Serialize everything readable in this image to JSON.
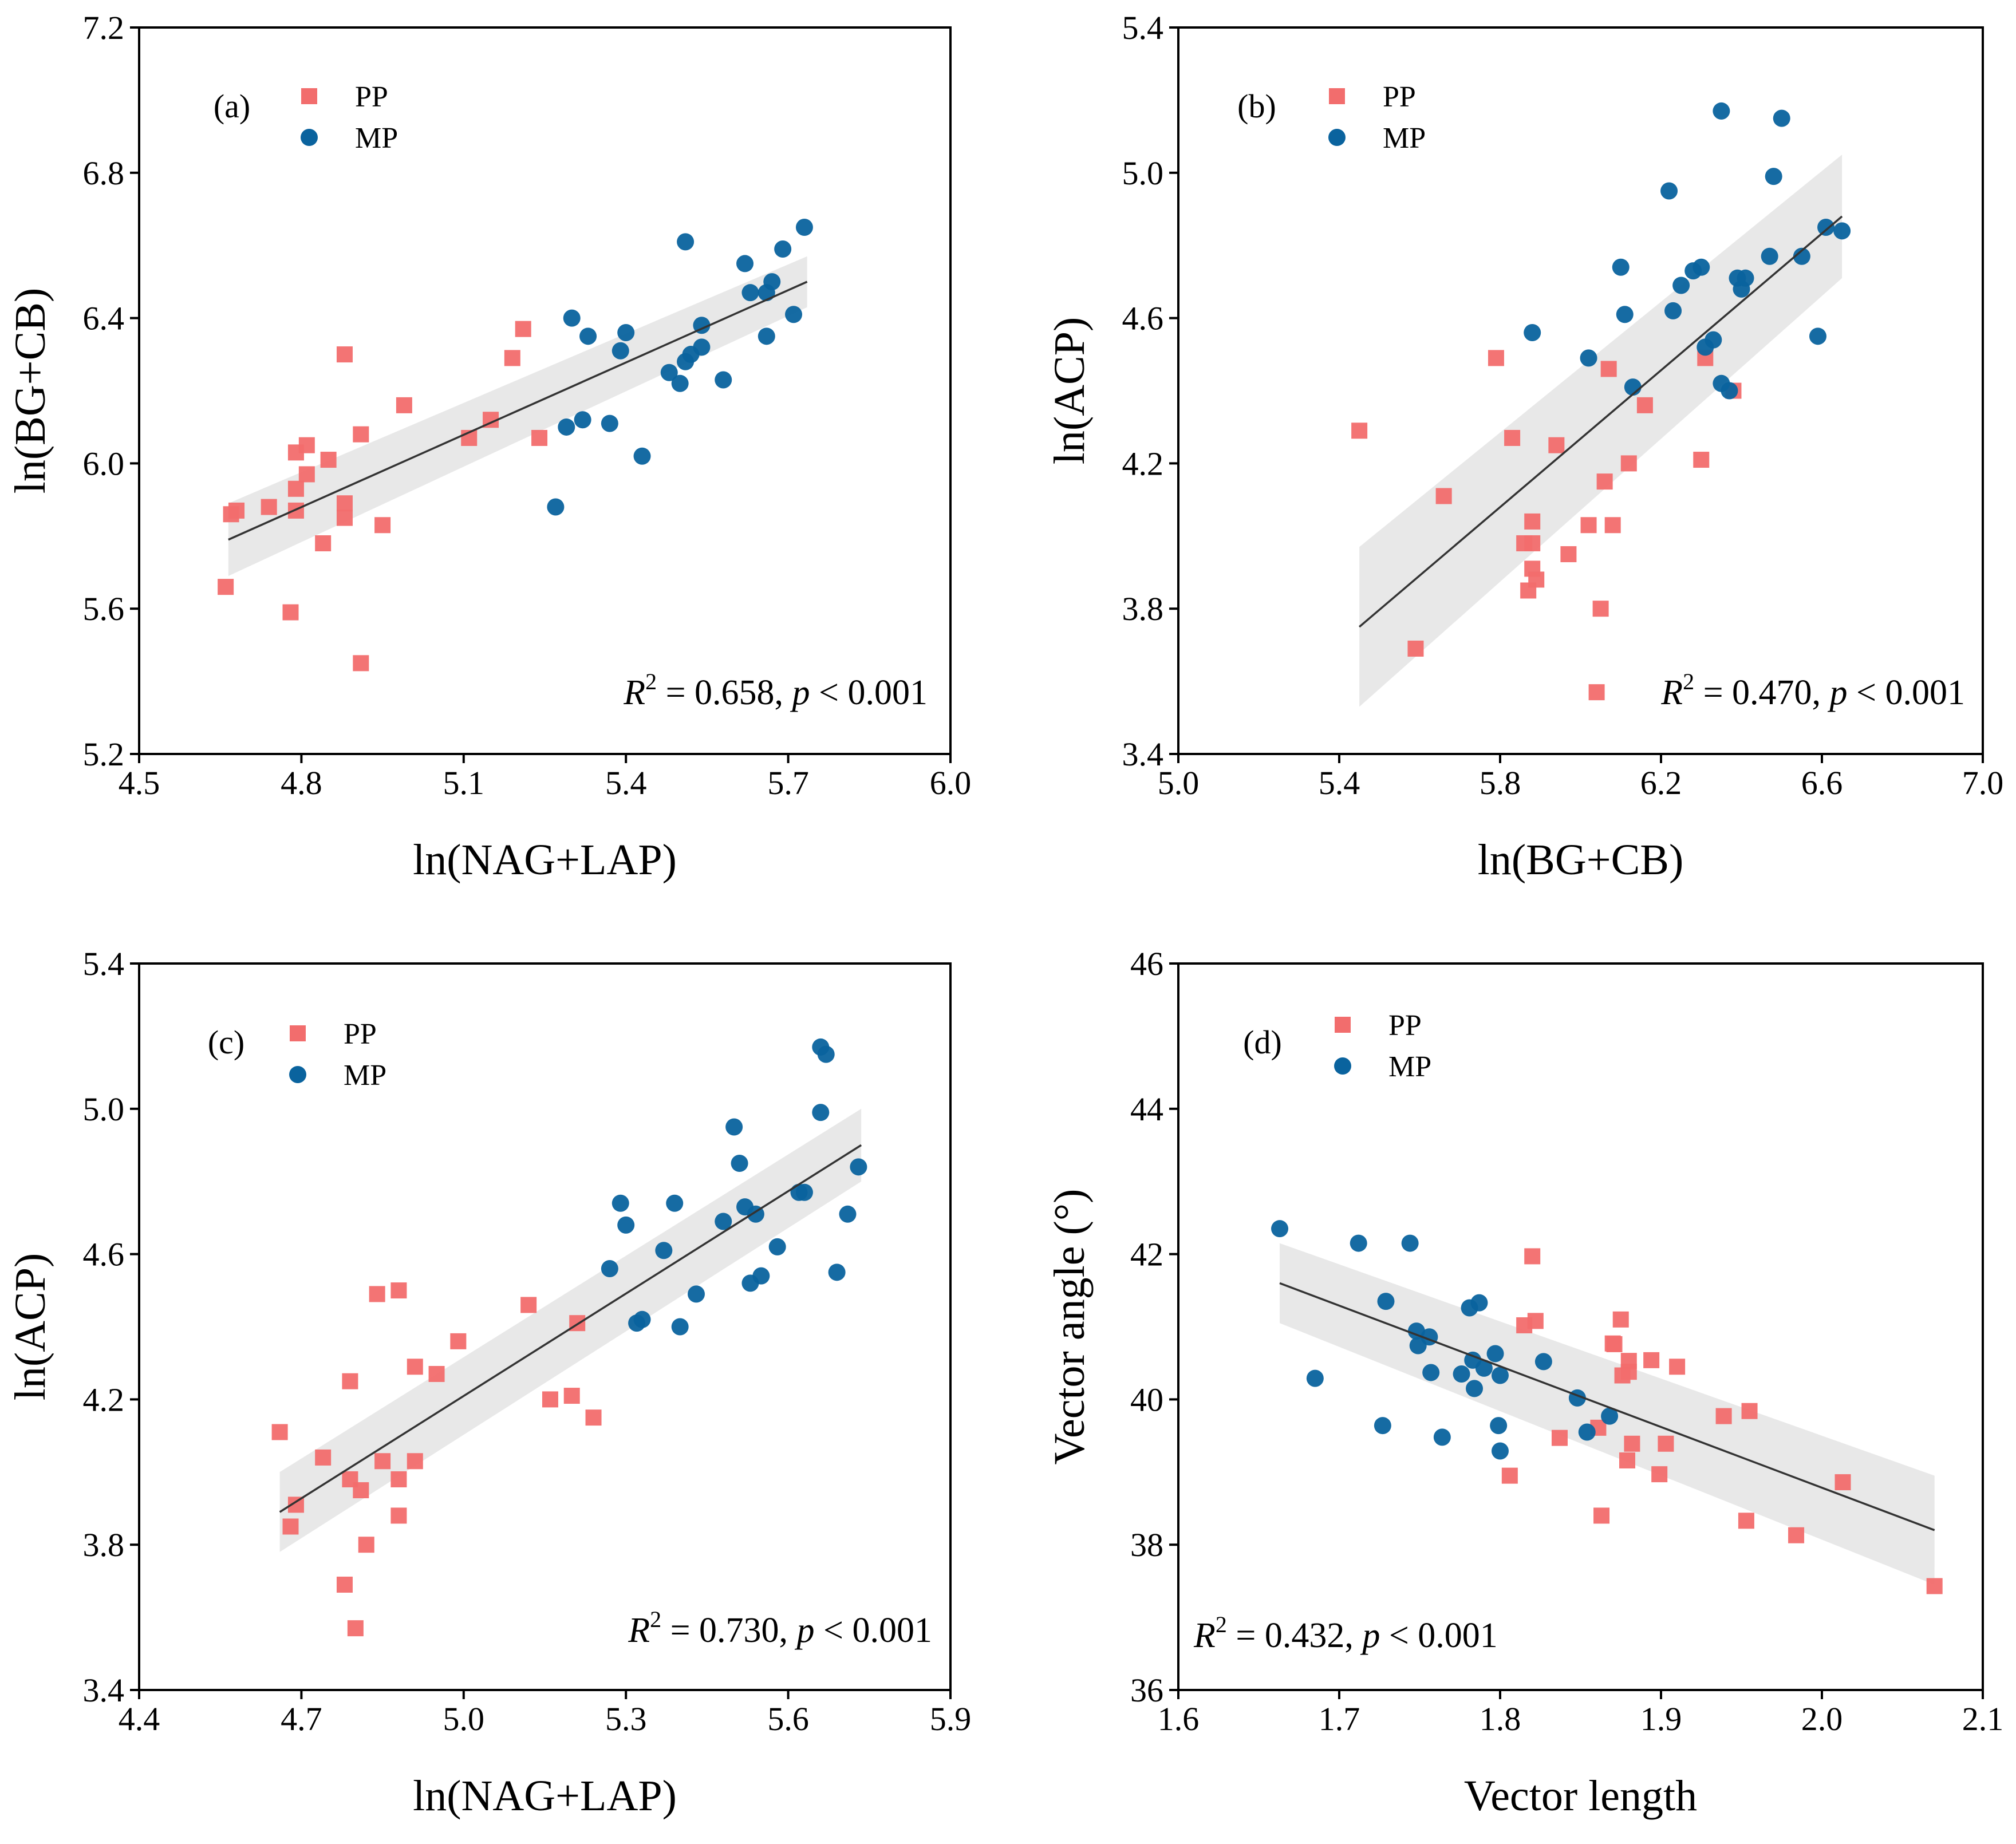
{
  "chart_data": [
    {
      "type": "scatter",
      "panel_label": "(a)",
      "xlabel": "ln(NAG+LAP)",
      "ylabel": "ln(BG+CB)",
      "xlim": [
        4.5,
        6.0
      ],
      "ylim": [
        5.2,
        7.2
      ],
      "xticks": [
        "4.5",
        "4.8",
        "5.1",
        "5.4",
        "5.7",
        "6.0"
      ],
      "yticks": [
        "5.2",
        "5.6",
        "6.0",
        "6.4",
        "6.8",
        "7.2"
      ],
      "legend": [
        {
          "name": "PP",
          "marker": "square",
          "color": "#f26d6d"
        },
        {
          "name": "MP",
          "marker": "circle",
          "color": "#0a639e"
        }
      ],
      "stats": {
        "r2_prefix": "R",
        "r2_sup": "2",
        "r2_value": " = 0.658, ",
        "p_letter": "p",
        "p_value": " < 0.001"
      },
      "fit": {
        "x": [
          4.665,
          5.735
        ],
        "y": [
          5.79,
          6.5
        ]
      },
      "ci": {
        "upper": [
          5.89,
          6.57
        ],
        "lower": [
          5.69,
          6.43
        ],
        "x_end": 5.735
      },
      "series": [
        {
          "name": "PP",
          "points": [
            [
              4.66,
              5.66
            ],
            [
              4.67,
              5.86
            ],
            [
              4.68,
              5.87
            ],
            [
              4.74,
              5.88
            ],
            [
              4.78,
              5.59
            ],
            [
              4.79,
              5.87
            ],
            [
              4.79,
              5.93
            ],
            [
              4.79,
              6.03
            ],
            [
              4.81,
              5.97
            ],
            [
              4.81,
              6.05
            ],
            [
              4.84,
              5.78
            ],
            [
              4.85,
              6.01
            ],
            [
              4.88,
              5.89
            ],
            [
              4.88,
              5.85
            ],
            [
              4.88,
              6.3
            ],
            [
              4.91,
              6.08
            ],
            [
              4.91,
              5.45
            ],
            [
              4.95,
              5.83
            ],
            [
              4.99,
              6.16
            ],
            [
              5.11,
              6.07
            ],
            [
              5.15,
              6.12
            ],
            [
              5.19,
              6.29
            ],
            [
              5.21,
              6.37
            ],
            [
              5.24,
              6.07
            ]
          ]
        },
        {
          "name": "MP",
          "points": [
            [
              5.27,
              5.88
            ],
            [
              5.29,
              6.1
            ],
            [
              5.3,
              6.4
            ],
            [
              5.32,
              6.12
            ],
            [
              5.33,
              6.35
            ],
            [
              5.37,
              6.11
            ],
            [
              5.39,
              6.31
            ],
            [
              5.4,
              6.36
            ],
            [
              5.43,
              6.02
            ],
            [
              5.48,
              6.25
            ],
            [
              5.5,
              6.22
            ],
            [
              5.51,
              6.28
            ],
            [
              5.51,
              6.61
            ],
            [
              5.52,
              6.3
            ],
            [
              5.54,
              6.32
            ],
            [
              5.54,
              6.38
            ],
            [
              5.58,
              6.23
            ],
            [
              5.62,
              6.55
            ],
            [
              5.63,
              6.47
            ],
            [
              5.66,
              6.47
            ],
            [
              5.66,
              6.35
            ],
            [
              5.67,
              6.5
            ],
            [
              5.69,
              6.59
            ],
            [
              5.71,
              6.41
            ],
            [
              5.73,
              6.65
            ]
          ]
        }
      ]
    },
    {
      "type": "scatter",
      "panel_label": "(b)",
      "xlabel": "ln(BG+CB)",
      "ylabel": "ln(ACP)",
      "xlim": [
        5.0,
        7.0
      ],
      "ylim": [
        3.4,
        5.4
      ],
      "xticks": [
        "5.0",
        "5.4",
        "5.8",
        "6.2",
        "6.6",
        "7.0"
      ],
      "yticks": [
        "3.4",
        "3.8",
        "4.2",
        "4.6",
        "5.0",
        "5.4"
      ],
      "legend": [
        {
          "name": "PP",
          "marker": "square",
          "color": "#f26d6d"
        },
        {
          "name": "MP",
          "marker": "circle",
          "color": "#0a639e"
        }
      ],
      "stats": {
        "r2_prefix": "R",
        "r2_sup": "2",
        "r2_value": " = 0.470, ",
        "p_letter": "p",
        "p_value": " < 0.001"
      },
      "fit": {
        "x": [
          5.45,
          6.65
        ],
        "y": [
          3.75,
          4.88
        ]
      },
      "ci": {
        "upper": [
          3.97,
          5.05
        ],
        "lower": [
          3.53,
          4.71
        ],
        "x_end": 6.65
      },
      "series": [
        {
          "name": "PP",
          "points": [
            [
              5.45,
              4.29
            ],
            [
              5.59,
              3.69
            ],
            [
              5.66,
              4.11
            ],
            [
              5.79,
              4.49
            ],
            [
              5.83,
              4.27
            ],
            [
              5.86,
              3.98
            ],
            [
              5.87,
              3.85
            ],
            [
              5.88,
              3.98
            ],
            [
              5.88,
              3.91
            ],
            [
              5.88,
              4.04
            ],
            [
              5.89,
              3.88
            ],
            [
              5.94,
              4.25
            ],
            [
              5.97,
              3.95
            ],
            [
              6.02,
              4.03
            ],
            [
              6.04,
              3.57
            ],
            [
              6.05,
              3.8
            ],
            [
              6.06,
              4.15
            ],
            [
              6.07,
              4.46
            ],
            [
              6.08,
              4.03
            ],
            [
              6.12,
              4.2
            ],
            [
              6.16,
              4.36
            ],
            [
              6.3,
              4.21
            ],
            [
              6.31,
              4.49
            ],
            [
              6.38,
              4.4
            ]
          ]
        },
        {
          "name": "MP",
          "points": [
            [
              5.88,
              4.56
            ],
            [
              6.02,
              4.49
            ],
            [
              6.1,
              4.74
            ],
            [
              6.11,
              4.61
            ],
            [
              6.13,
              4.41
            ],
            [
              6.22,
              4.95
            ],
            [
              6.23,
              4.62
            ],
            [
              6.25,
              4.69
            ],
            [
              6.28,
              4.73
            ],
            [
              6.3,
              4.74
            ],
            [
              6.31,
              4.52
            ],
            [
              6.33,
              4.54
            ],
            [
              6.35,
              5.17
            ],
            [
              6.35,
              4.42
            ],
            [
              6.37,
              4.4
            ],
            [
              6.39,
              4.71
            ],
            [
              6.4,
              4.68
            ],
            [
              6.41,
              4.71
            ],
            [
              6.47,
              4.77
            ],
            [
              6.48,
              4.99
            ],
            [
              6.5,
              5.15
            ],
            [
              6.55,
              4.77
            ],
            [
              6.59,
              4.55
            ],
            [
              6.61,
              4.85
            ],
            [
              6.65,
              4.84
            ]
          ]
        }
      ]
    },
    {
      "type": "scatter",
      "panel_label": "(c)",
      "xlabel": "ln(NAG+LAP)",
      "ylabel": "ln(ACP)",
      "xlim": [
        4.4,
        5.9
      ],
      "ylim": [
        3.4,
        5.4
      ],
      "xticks": [
        "4.4",
        "4.7",
        "5.0",
        "5.3",
        "5.6",
        "5.9"
      ],
      "yticks": [
        "3.4",
        "3.8",
        "4.2",
        "4.6",
        "5.0",
        "5.4"
      ],
      "legend": [
        {
          "name": "PP",
          "marker": "square",
          "color": "#f26d6d"
        },
        {
          "name": "MP",
          "marker": "circle",
          "color": "#0a639e"
        }
      ],
      "stats": {
        "r2_prefix": "R",
        "r2_sup": "2",
        "r2_value": " = 0.730, ",
        "p_letter": "p",
        "p_value": " < 0.001"
      },
      "fit": {
        "x": [
          4.66,
          5.735
        ],
        "y": [
          3.89,
          4.9
        ]
      },
      "ci": {
        "upper": [
          4.0,
          5.0
        ],
        "lower": [
          3.78,
          4.8
        ],
        "x_end": 5.735
      },
      "series": [
        {
          "name": "PP",
          "points": [
            [
              4.66,
              4.11
            ],
            [
              4.68,
              3.85
            ],
            [
              4.69,
              3.91
            ],
            [
              4.74,
              4.04
            ],
            [
              4.78,
              3.69
            ],
            [
              4.79,
              3.98
            ],
            [
              4.79,
              4.25
            ],
            [
              4.8,
              3.57
            ],
            [
              4.81,
              3.95
            ],
            [
              4.82,
              3.8
            ],
            [
              4.84,
              4.49
            ],
            [
              4.85,
              4.03
            ],
            [
              4.88,
              3.88
            ],
            [
              4.88,
              3.98
            ],
            [
              4.88,
              4.5
            ],
            [
              4.91,
              4.29
            ],
            [
              4.91,
              4.03
            ],
            [
              4.95,
              4.27
            ],
            [
              4.99,
              4.36
            ],
            [
              5.12,
              4.46
            ],
            [
              5.16,
              4.2
            ],
            [
              5.2,
              4.21
            ],
            [
              5.21,
              4.41
            ],
            [
              5.24,
              4.15
            ]
          ]
        },
        {
          "name": "MP",
          "points": [
            [
              5.27,
              4.56
            ],
            [
              5.29,
              4.74
            ],
            [
              5.3,
              4.68
            ],
            [
              5.32,
              4.41
            ],
            [
              5.33,
              4.42
            ],
            [
              5.37,
              4.61
            ],
            [
              5.39,
              4.74
            ],
            [
              5.4,
              4.4
            ],
            [
              5.43,
              4.49
            ],
            [
              5.48,
              4.69
            ],
            [
              5.5,
              4.95
            ],
            [
              5.51,
              4.85
            ],
            [
              5.52,
              4.73
            ],
            [
              5.53,
              4.52
            ],
            [
              5.54,
              4.71
            ],
            [
              5.55,
              4.54
            ],
            [
              5.58,
              4.62
            ],
            [
              5.62,
              4.77
            ],
            [
              5.63,
              4.77
            ],
            [
              5.66,
              4.99
            ],
            [
              5.66,
              5.17
            ],
            [
              5.67,
              5.15
            ],
            [
              5.69,
              4.55
            ],
            [
              5.71,
              4.71
            ],
            [
              5.73,
              4.84
            ]
          ]
        }
      ]
    },
    {
      "type": "scatter",
      "panel_label": "(d)",
      "xlabel": "Vector length",
      "ylabel": "Vector angle (°)",
      "xlim": [
        1.6,
        2.1
      ],
      "ylim": [
        36,
        46
      ],
      "xticks": [
        "1.6",
        "1.7",
        "1.8",
        "1.9",
        "2.0",
        "2.1"
      ],
      "yticks": [
        "36",
        "38",
        "40",
        "42",
        "44",
        "46"
      ],
      "legend": [
        {
          "name": "PP",
          "marker": "square",
          "color": "#f26d6d"
        },
        {
          "name": "MP",
          "marker": "circle",
          "color": "#0a639e"
        }
      ],
      "stats": {
        "r2_prefix": "R",
        "r2_sup": "2",
        "r2_value": " = 0.432, ",
        "p_letter": "p",
        "p_value": " < 0.001"
      },
      "fit": {
        "x": [
          1.663,
          2.07
        ],
        "y": [
          41.6,
          38.2
        ]
      },
      "ci": {
        "upper": [
          42.15,
          38.95
        ],
        "lower": [
          41.05,
          37.45
        ],
        "x_end": 2.07
      },
      "series": [
        {
          "name": "PP",
          "points": [
            [
              1.806,
              38.95
            ],
            [
              1.815,
              41.02
            ],
            [
              1.82,
              41.97
            ],
            [
              1.822,
              41.08
            ],
            [
              1.837,
              39.47
            ],
            [
              1.861,
              39.61
            ],
            [
              1.863,
              38.4
            ],
            [
              1.87,
              40.77
            ],
            [
              1.871,
              40.76
            ],
            [
              1.875,
              41.1
            ],
            [
              1.876,
              40.33
            ],
            [
              1.879,
              39.16
            ],
            [
              1.88,
              40.53
            ],
            [
              1.88,
              40.38
            ],
            [
              1.882,
              39.39
            ],
            [
              1.894,
              40.54
            ],
            [
              1.899,
              38.97
            ],
            [
              1.903,
              39.39
            ],
            [
              1.91,
              40.45
            ],
            [
              1.939,
              39.77
            ],
            [
              1.953,
              38.33
            ],
            [
              1.955,
              39.84
            ],
            [
              1.984,
              38.13
            ],
            [
              2.013,
              38.86
            ],
            [
              2.07,
              37.43
            ]
          ]
        },
        {
          "name": "MP",
          "points": [
            [
              1.663,
              42.35
            ],
            [
              1.685,
              40.29
            ],
            [
              1.712,
              42.15
            ],
            [
              1.727,
              39.64
            ],
            [
              1.729,
              41.35
            ],
            [
              1.744,
              42.15
            ],
            [
              1.748,
              40.94
            ],
            [
              1.749,
              40.74
            ],
            [
              1.756,
              40.86
            ],
            [
              1.757,
              40.37
            ],
            [
              1.764,
              39.48
            ],
            [
              1.776,
              40.35
            ],
            [
              1.781,
              41.26
            ],
            [
              1.783,
              40.54
            ],
            [
              1.784,
              40.15
            ],
            [
              1.787,
              41.33
            ],
            [
              1.79,
              40.43
            ],
            [
              1.797,
              40.63
            ],
            [
              1.799,
              39.64
            ],
            [
              1.8,
              39.29
            ],
            [
              1.8,
              40.33
            ],
            [
              1.827,
              40.52
            ],
            [
              1.848,
              40.02
            ],
            [
              1.854,
              39.55
            ],
            [
              1.868,
              39.77
            ]
          ]
        }
      ]
    }
  ]
}
